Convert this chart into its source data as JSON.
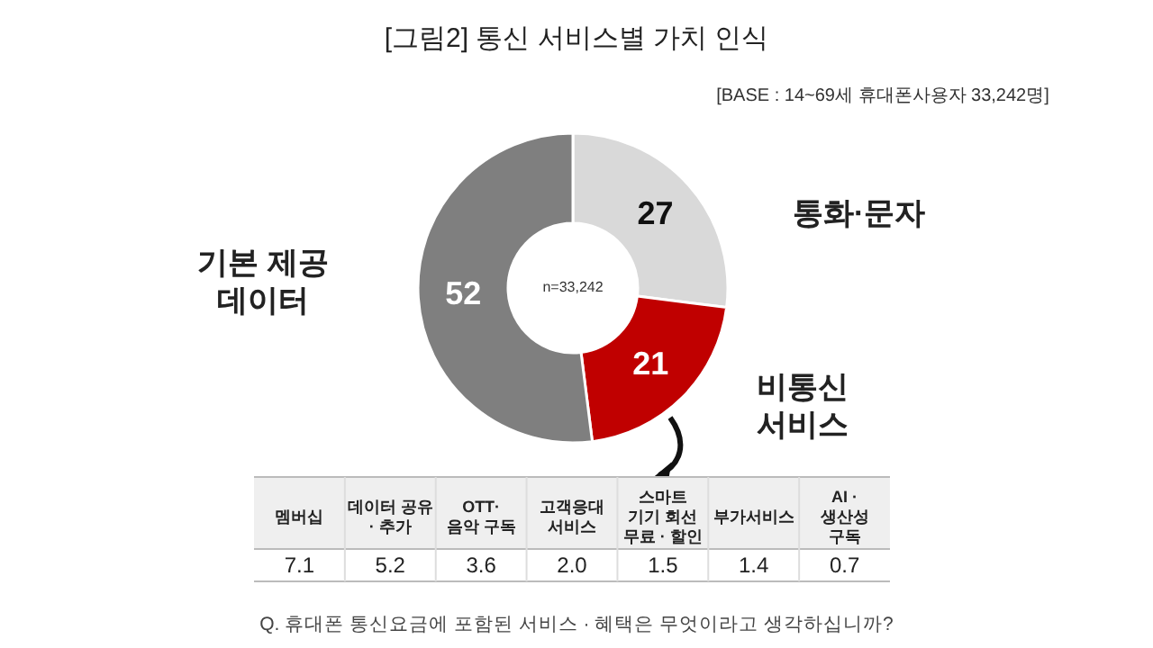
{
  "chart_data": [
    {
      "type": "donut",
      "title": "[그림2] 통신 서비스별 가치 인식",
      "subtitle": "[BASE : 14~69세 휴대폰사용자 33,242명]",
      "annotations": [
        "n=33,242"
      ],
      "categories": [
        "통화·문자",
        "비통신\n서비스",
        "기본 제공\n데이터"
      ],
      "values": [
        27,
        21,
        52
      ],
      "colors": [
        "#d9d9d9",
        "#c00000",
        "#7f7f7f"
      ],
      "data_labels": true
    },
    {
      "type": "other",
      "categories": [
        "멤버십",
        "데이터 공유\n· 추가",
        "OTT·\n음악 구독",
        "고객응대\n서비스",
        "스마트\n기기 회선\n무료 · 할인",
        "부가서비스",
        "AI ·\n생산성\n구독"
      ],
      "values": [
        7.1,
        5.2,
        3.6,
        2.0,
        1.5,
        1.4,
        0.7
      ],
      "value_labels": [
        "7.1",
        "5.2",
        "3.6",
        "2.0",
        "1.5",
        "1.4",
        "0.7"
      ],
      "annotations": [
        "Q. 휴대폰 통신요금에 포함된 서비스 · 혜택은 무엇이라고 생각하십니까?"
      ]
    }
  ]
}
